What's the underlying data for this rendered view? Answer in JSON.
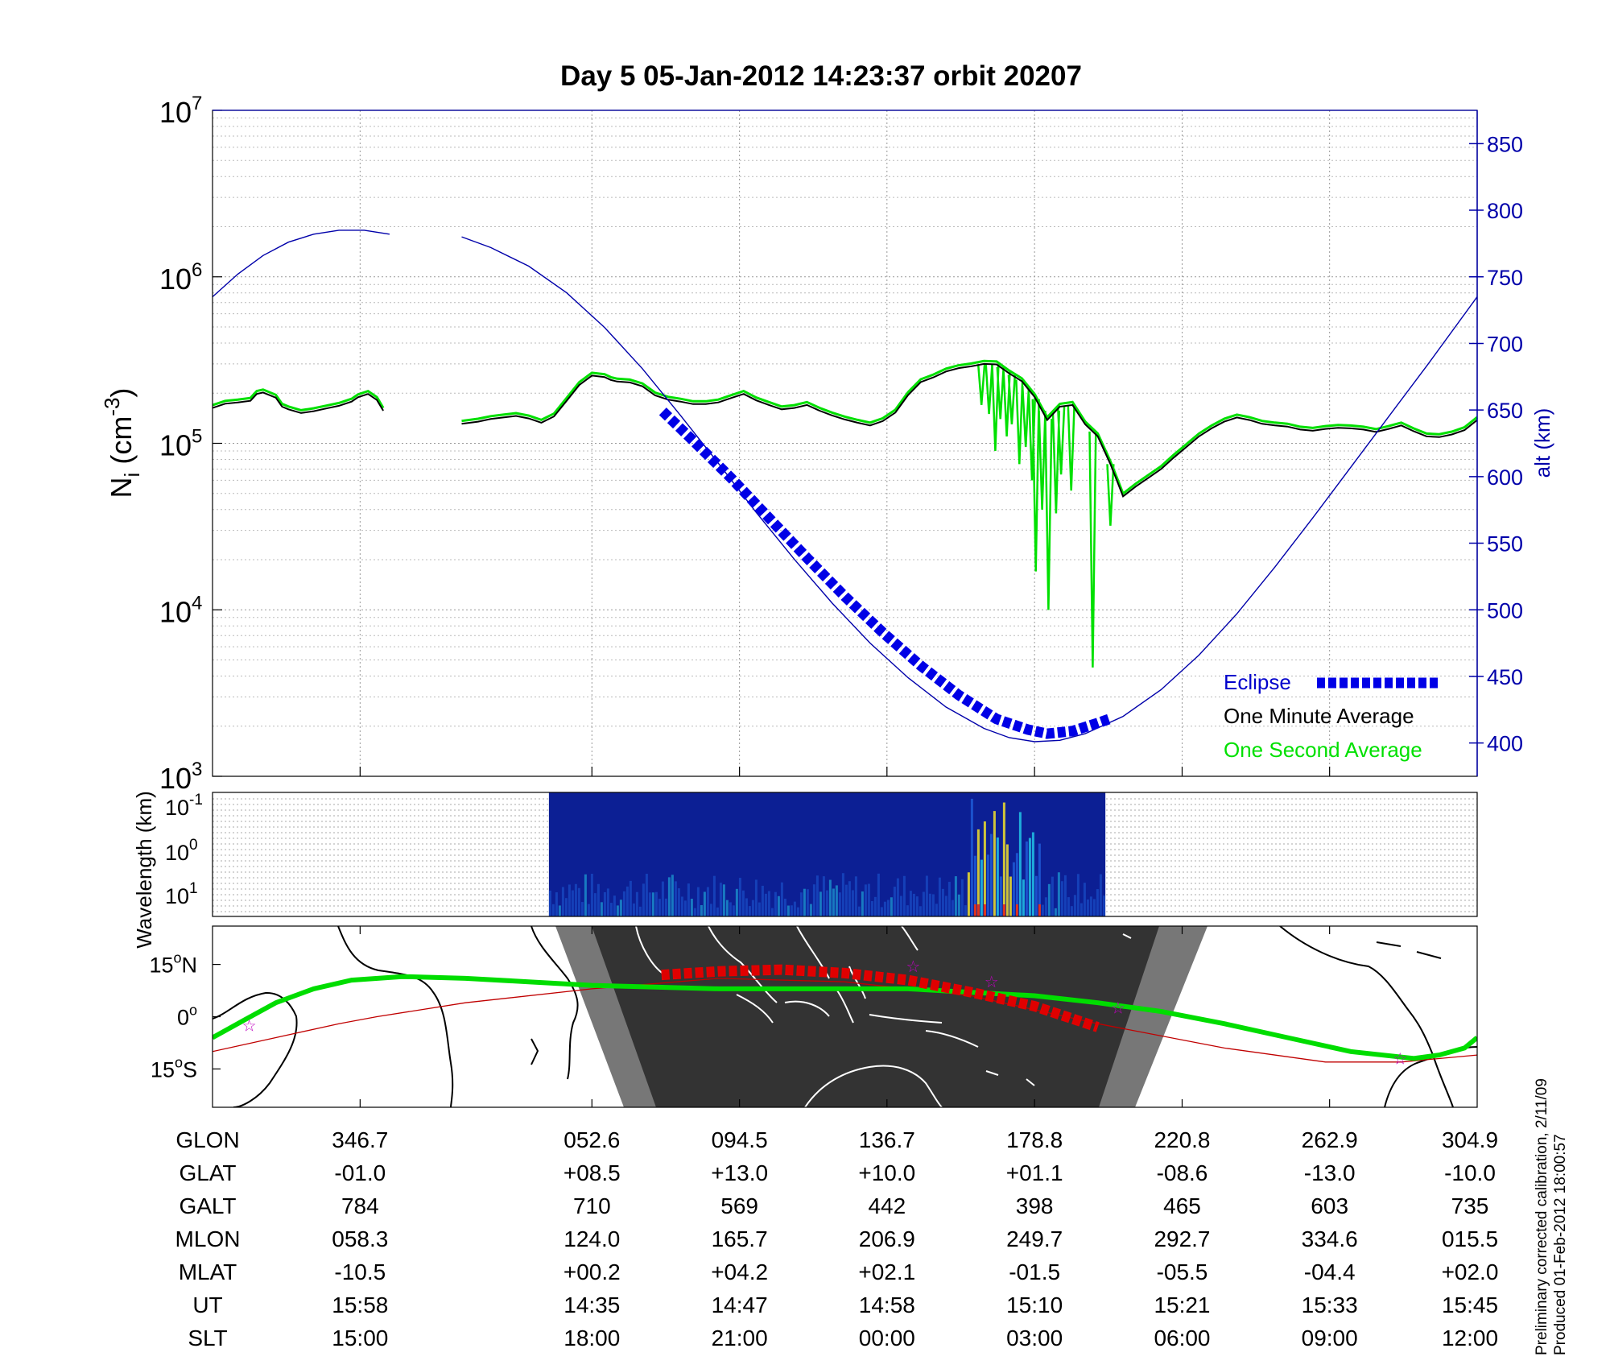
{
  "title": "Day 5  05-Jan-2012 14:23:37   orbit 20207",
  "footnote": {
    "line1": "Preliminary corrected calibration, 2/11/09",
    "line2": "Produced 01-Feb-2012 18:00:57"
  },
  "colors": {
    "altitude": "#0000aa",
    "eclipse": "#0000e6",
    "minute_avg": "#000000",
    "second_avg": "#00e000",
    "track": "#00dd00",
    "track_eclipse": "#e00000",
    "orbit_line": "#c00000",
    "night": "#333333",
    "twilight": "#777777"
  },
  "chart_data": [
    {
      "type": "line",
      "panel": "density",
      "title": "Day 5  05-Jan-2012 14:23:37   orbit 20207",
      "ylabel_base": "N",
      "ylabel_sub": "i",
      "ylabel_unit": " (cm",
      "ylabel_exp": "-3",
      "ylabel_close": ")",
      "yscale": "log",
      "ylim": [
        1000,
        10000000
      ],
      "yticks": [
        {
          "base": "10",
          "exp": "3",
          "value": 1000
        },
        {
          "base": "10",
          "exp": "4",
          "value": 10000
        },
        {
          "base": "10",
          "exp": "5",
          "value": 100000
        },
        {
          "base": "10",
          "exp": "6",
          "value": 1000000
        },
        {
          "base": "10",
          "exp": "7",
          "value": 10000000
        }
      ],
      "y2label": "alt (km)",
      "y2lim": [
        375,
        875
      ],
      "y2ticks": [
        "400",
        "450",
        "500",
        "550",
        "600",
        "650",
        "700",
        "750",
        "800",
        "850"
      ],
      "xlim": [
        0,
        100
      ],
      "xgrid": [
        11.67,
        30,
        41.67,
        53.33,
        65,
        76.67,
        88.33
      ],
      "grid": true,
      "legend": {
        "position": "bottom-right",
        "entries": [
          "Eclipse",
          "One Minute Average",
          "One Second Average"
        ]
      },
      "series": [
        {
          "name": "alt (km)",
          "axis": "right",
          "segments": [
            {
              "x": [
                0,
                2,
                4,
                6,
                8,
                10,
                12,
                14
              ],
              "y": [
                735,
                752,
                766,
                776,
                782,
                785,
                785,
                782
              ]
            },
            {
              "x": [
                19.7,
                22,
                25,
                28,
                31,
                34,
                37,
                40,
                43,
                46,
                49,
                52,
                55,
                58,
                61,
                63,
                65,
                67,
                69,
                72,
                75,
                78,
                81,
                84,
                87,
                90,
                93,
                96,
                100
              ],
              "y": [
                780,
                772,
                758,
                738,
                712,
                681,
                646,
                610,
                573,
                538,
                505,
                475,
                449,
                427,
                411,
                404,
                401,
                402,
                407,
                420,
                440,
                466,
                497,
                532,
                569,
                607,
                645,
                683,
                735
              ]
            }
          ]
        },
        {
          "name": "Eclipse",
          "axis": "right",
          "x": [
            35.6,
            38,
            41,
            44,
            47,
            50,
            53,
            56,
            59,
            62,
            64.5,
            66,
            68,
            70,
            70.9
          ],
          "y": [
            649,
            627,
            599,
            569,
            539,
            510,
            483,
            458,
            436,
            418,
            410,
            407,
            409,
            415,
            418
          ]
        },
        {
          "name": "One Minute Average",
          "segments": [
            {
              "x": [
                0,
                1,
                2,
                3,
                3.5,
                4,
                5,
                5.5,
                6,
                7,
                8,
                9,
                10,
                11,
                11.5,
                12.3,
                13,
                13.5
              ],
              "y": [
                163000,
                173000,
                176000,
                180000,
                198000,
                202000,
                188000,
                166000,
                160000,
                152000,
                156000,
                162000,
                168000,
                178000,
                189000,
                198000,
                182000,
                157000
              ]
            },
            {
              "x": [
                19.7,
                21,
                22,
                23,
                24,
                25,
                26,
                27,
                28,
                29,
                30,
                31,
                31.5,
                32,
                33,
                34,
                35,
                36,
                37,
                38,
                39,
                40,
                41,
                42,
                43,
                44,
                45,
                46,
                47,
                48,
                49,
                50,
                51,
                52,
                53,
                54,
                55,
                56,
                57,
                58,
                59,
                60,
                61,
                62,
                63,
                64,
                65,
                66,
                67,
                68,
                69,
                70,
                71,
                71.5,
                72,
                73,
                74,
                75,
                76,
                77,
                78,
                79,
                80,
                81,
                82,
                83,
                84,
                85,
                86,
                87,
                88,
                89,
                90,
                91,
                92,
                93,
                94,
                95,
                96,
                97,
                98,
                99,
                100
              ],
              "y": [
                131000,
                135000,
                140000,
                143000,
                146000,
                141000,
                133000,
                145000,
                180000,
                224000,
                255000,
                250000,
                240000,
                235000,
                232000,
                220000,
                194000,
                183000,
                178000,
                172000,
                172000,
                176000,
                187000,
                198000,
                181000,
                170000,
                160000,
                163000,
                170000,
                157000,
                147000,
                139000,
                133000,
                128000,
                136000,
                153000,
                195000,
                233000,
                249000,
                270000,
                283000,
                290000,
                300000,
                298000,
                263000,
                236000,
                190000,
                138000,
                166000,
                170000,
                130000,
                110000,
                75000,
                60000,
                48000,
                55000,
                62000,
                70000,
                82000,
                95000,
                110000,
                123000,
                135000,
                143000,
                138000,
                131000,
                128000,
                126000,
                121000,
                119000,
                122000,
                124000,
                123000,
                121000,
                117000,
                122000,
                128000,
                118000,
                110000,
                109000,
                113000,
                120000,
                138000
              ]
            }
          ]
        },
        {
          "name": "One Second Average",
          "spikes": {
            "x": [
              60.8,
              61.4,
              61.9,
              62.3,
              62.8,
              63.2,
              63.8,
              64.3,
              64.8,
              65.1,
              65.6,
              66.1,
              66.7,
              67.1,
              67.9,
              69.6,
              71.0
            ],
            "y": [
              170000,
              150000,
              90000,
              140000,
              110000,
              130000,
              75000,
              95000,
              60000,
              17000,
              40000,
              10000,
              38000,
              65000,
              52000,
              4500,
              32000
            ]
          }
        }
      ]
    },
    {
      "type": "heatmap",
      "panel": "spectrogram",
      "ylabel": "Wavelength (km)",
      "ytick_labels": [
        {
          "base": "10",
          "exp": "-1"
        },
        {
          "base": "10",
          "exp": "0"
        },
        {
          "base": "10",
          "exp": "1"
        }
      ],
      "x_range": [
        26.6,
        70.6
      ],
      "colormap": [
        "#0a1a8c",
        "#1e5bd6",
        "#22c4e6",
        "#f2e22a",
        "#e0321e"
      ]
    },
    {
      "type": "map",
      "panel": "ground_track",
      "ytick_labels": [
        {
          "num": "15",
          "suffix": "N",
          "lat": 15
        },
        {
          "num": "0",
          "suffix": "",
          "lat": 0
        },
        {
          "num": "15",
          "suffix": "S",
          "lat": -15
        }
      ],
      "ylim": [
        -26,
        26
      ],
      "track": {
        "x": [
          0,
          2.5,
          5,
          8,
          11,
          15,
          20,
          25,
          30,
          35,
          40,
          45,
          50,
          55,
          60,
          65,
          70,
          75,
          80,
          85,
          90,
          95,
          97,
          99,
          100
        ],
        "lat": [
          -6,
          -1,
          4,
          8,
          10.5,
          11.5,
          11,
          10,
          9,
          8.5,
          8,
          8,
          8,
          8,
          7,
          6,
          4,
          1.5,
          -2,
          -6,
          -10,
          -12,
          -11,
          -9,
          -6
        ]
      },
      "track_eclipse": {
        "x": [
          35.5,
          40,
          45,
          50,
          55,
          60,
          65,
          70
        ],
        "lat": [
          12,
          13,
          13.5,
          12.5,
          10.5,
          7,
          3,
          -3
        ]
      },
      "orbit_line": {
        "x": [
          0,
          5,
          10,
          13,
          20,
          30,
          40,
          50,
          60,
          70,
          80,
          88,
          94,
          100
        ],
        "lat": [
          -10,
          -6,
          -2,
          0,
          4,
          8,
          11,
          10,
          6,
          -2,
          -9,
          -13,
          -13,
          -11
        ]
      },
      "stars": [
        {
          "x": 2.9,
          "lat": -2.5
        },
        {
          "x": 55.4,
          "lat": 14.5
        },
        {
          "x": 61.6,
          "lat": 10
        },
        {
          "x": 71.6,
          "lat": 2.5
        },
        {
          "x": 93.9,
          "lat": -12
        }
      ]
    }
  ],
  "table": {
    "row_labels": [
      "GLON",
      "GLAT",
      "GALT",
      "MLON",
      "MLAT",
      "UT",
      "SLT"
    ],
    "column_x": [
      11.67,
      30,
      41.67,
      53.33,
      65,
      76.67,
      88.33,
      100
    ],
    "rows": [
      [
        "346.7",
        "052.6",
        "094.5",
        "136.7",
        "178.8",
        "220.8",
        "262.9",
        "304.9"
      ],
      [
        "-01.0",
        "+08.5",
        "+13.0",
        "+10.0",
        "+01.1",
        "-08.6",
        "-13.0",
        "-10.0"
      ],
      [
        "784",
        "710",
        "569",
        "442",
        "398",
        "465",
        "603",
        "735"
      ],
      [
        "058.3",
        "124.0",
        "165.7",
        "206.9",
        "249.7",
        "292.7",
        "334.6",
        "015.5"
      ],
      [
        "-10.5",
        "+00.2",
        "+04.2",
        "+02.1",
        "-01.5",
        "-05.5",
        "-04.4",
        "+02.0"
      ],
      [
        "15:58",
        "14:35",
        "14:47",
        "14:58",
        "15:10",
        "15:21",
        "15:33",
        "15:45"
      ],
      [
        "15:00",
        "18:00",
        "21:00",
        "00:00",
        "03:00",
        "06:00",
        "09:00",
        "12:00"
      ]
    ]
  }
}
